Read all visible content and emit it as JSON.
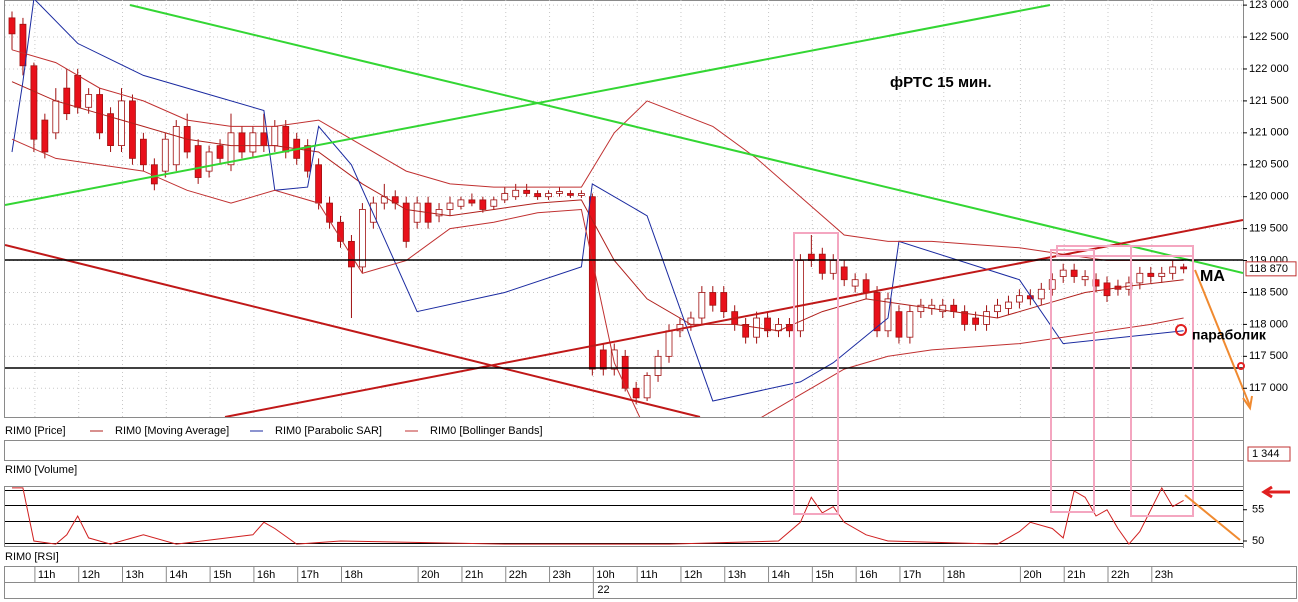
{
  "chart_data": {
    "type": "candlestick",
    "title": "фРТС   15 мин.",
    "annotations": [
      "MA",
      "параболик"
    ],
    "ylim": [
      116550,
      123080
    ],
    "yticks": [
      {
        "value": 117000,
        "label": "117 000"
      },
      {
        "value": 117500,
        "label": "117 500"
      },
      {
        "value": 118000,
        "label": "118 000"
      },
      {
        "value": 118500,
        "label": "118 500"
      },
      {
        "value": 119000,
        "label": "119 000"
      },
      {
        "value": 119500,
        "label": "119 500"
      },
      {
        "value": 120000,
        "label": "120 000"
      },
      {
        "value": 120500,
        "label": "120 500"
      },
      {
        "value": 121000,
        "label": "121 000"
      },
      {
        "value": 121500,
        "label": "121 500"
      },
      {
        "value": 122000,
        "label": "122 000"
      },
      {
        "value": 122500,
        "label": "122 500"
      },
      {
        "value": 123000,
        "label": "123 000"
      }
    ],
    "grid": true,
    "last_price": {
      "value": 118870,
      "label": "118 870"
    },
    "xticks": [
      {
        "value": 2,
        "label": "11h"
      },
      {
        "value": 6,
        "label": "12h"
      },
      {
        "value": 10,
        "label": "13h"
      },
      {
        "value": 14,
        "label": "14h"
      },
      {
        "value": 18,
        "label": "15h"
      },
      {
        "value": 22,
        "label": "16h"
      },
      {
        "value": 26,
        "label": "17h"
      },
      {
        "value": 30,
        "label": "18h"
      },
      {
        "value": 37,
        "label": "20h"
      },
      {
        "value": 41,
        "label": "21h"
      },
      {
        "value": 45,
        "label": "22h"
      },
      {
        "value": 49,
        "label": "23h"
      },
      {
        "value": 53,
        "label": "10h"
      },
      {
        "value": 57,
        "label": "11h"
      },
      {
        "value": 61,
        "label": "12h"
      },
      {
        "value": 65,
        "label": "13h"
      },
      {
        "value": 69,
        "label": "14h"
      },
      {
        "value": 73,
        "label": "15h"
      },
      {
        "value": 77,
        "label": "16h"
      },
      {
        "value": 81,
        "label": "17h"
      },
      {
        "value": 85,
        "label": "18h"
      },
      {
        "value": 92,
        "label": "20h"
      },
      {
        "value": 96,
        "label": "21h"
      },
      {
        "value": 100,
        "label": "22h"
      },
      {
        "value": 104,
        "label": "23h"
      }
    ],
    "date_tick": {
      "value": 53,
      "label": "22"
    },
    "series": [
      {
        "name": "RIM0 [Price]",
        "color": "#e8101a",
        "ohlc": [
          [
            122800,
            122900,
            122300,
            122550
          ],
          [
            122700,
            122800,
            121900,
            122050
          ],
          [
            122050,
            122100,
            120700,
            120900
          ],
          [
            121200,
            121300,
            120600,
            120700
          ],
          [
            121000,
            121700,
            120900,
            121500
          ],
          [
            121700,
            122000,
            121200,
            121300
          ],
          [
            121900,
            122000,
            121300,
            121400
          ],
          [
            121400,
            121700,
            121300,
            121600
          ],
          [
            121600,
            121700,
            120900,
            121000
          ],
          [
            121300,
            121400,
            120700,
            120800
          ],
          [
            120800,
            121700,
            120700,
            121500
          ],
          [
            121500,
            121600,
            120500,
            120600
          ],
          [
            120900,
            121000,
            120400,
            120500
          ],
          [
            120500,
            120600,
            120100,
            120200
          ],
          [
            120400,
            121000,
            120300,
            120900
          ],
          [
            120500,
            121200,
            120400,
            121100
          ],
          [
            121100,
            121300,
            120600,
            120700
          ],
          [
            120800,
            120900,
            120200,
            120300
          ],
          [
            120400,
            120800,
            120300,
            120700
          ],
          [
            120800,
            120900,
            120500,
            120600
          ],
          [
            120500,
            121300,
            120400,
            121000
          ],
          [
            121000,
            121100,
            120600,
            120700
          ],
          [
            120700,
            121100,
            120600,
            121000
          ],
          [
            121000,
            121300,
            120700,
            120800
          ],
          [
            120800,
            121200,
            120700,
            121100
          ],
          [
            121100,
            121200,
            120600,
            120700
          ],
          [
            120900,
            121000,
            120500,
            120600
          ],
          [
            120800,
            120900,
            120300,
            120400
          ],
          [
            120500,
            120600,
            119800,
            119900
          ],
          [
            119900,
            120000,
            119500,
            119600
          ],
          [
            119600,
            119700,
            119200,
            119300
          ],
          [
            119300,
            119400,
            118100,
            118900
          ],
          [
            118900,
            119900,
            118800,
            119800
          ],
          [
            119600,
            120000,
            119500,
            119900
          ],
          [
            119900,
            120200,
            119800,
            120000
          ],
          [
            120000,
            120100,
            119800,
            119900
          ],
          [
            119900,
            120000,
            119200,
            119300
          ],
          [
            119600,
            120000,
            119500,
            119900
          ],
          [
            119900,
            120000,
            119500,
            119600
          ],
          [
            119700,
            119900,
            119600,
            119800
          ],
          [
            119800,
            120000,
            119700,
            119900
          ],
          [
            119850,
            120000,
            119800,
            119950
          ],
          [
            119950,
            120050,
            119850,
            119900
          ],
          [
            119950,
            120000,
            119750,
            119800
          ],
          [
            119850,
            120000,
            119800,
            119950
          ],
          [
            119950,
            120150,
            119900,
            120050
          ],
          [
            120000,
            120200,
            119950,
            120100
          ],
          [
            120100,
            120200,
            120000,
            120050
          ],
          [
            120050,
            120100,
            119950,
            120000
          ],
          [
            120000,
            120100,
            119950,
            120050
          ],
          [
            120050,
            120150,
            120000,
            120080
          ],
          [
            120050,
            120100,
            119980,
            120020
          ],
          [
            120020,
            120100,
            119980,
            120050
          ],
          [
            120000,
            120050,
            117200,
            117300
          ],
          [
            117600,
            117700,
            117200,
            117300
          ],
          [
            117300,
            117700,
            117200,
            117600
          ],
          [
            117500,
            117600,
            116950,
            117000
          ],
          [
            117000,
            117100,
            116750,
            116850
          ],
          [
            116850,
            117250,
            116800,
            117200
          ],
          [
            117200,
            117600,
            117100,
            117500
          ],
          [
            117500,
            118000,
            117400,
            117900
          ],
          [
            117900,
            118100,
            117800,
            118000
          ],
          [
            118000,
            118200,
            117900,
            118100
          ],
          [
            118100,
            118600,
            118000,
            118500
          ],
          [
            118500,
            118600,
            118200,
            118300
          ],
          [
            118500,
            118600,
            118100,
            118200
          ],
          [
            118200,
            118300,
            117900,
            118000
          ],
          [
            118000,
            118100,
            117700,
            117800
          ],
          [
            117800,
            118200,
            117700,
            118100
          ],
          [
            118100,
            118200,
            117800,
            117900
          ],
          [
            117900,
            118100,
            117800,
            118000
          ],
          [
            118000,
            118100,
            117800,
            117900
          ],
          [
            117900,
            119100,
            117800,
            119000
          ],
          [
            119100,
            119400,
            118900,
            119000
          ],
          [
            119100,
            119200,
            118700,
            118800
          ],
          [
            118800,
            119100,
            118700,
            119000
          ],
          [
            118900,
            119000,
            118600,
            118700
          ],
          [
            118600,
            118800,
            118500,
            118700
          ],
          [
            118700,
            118800,
            118400,
            118500
          ],
          [
            118500,
            118600,
            117800,
            117900
          ],
          [
            117900,
            118500,
            117800,
            118400
          ],
          [
            118200,
            118300,
            117700,
            117800
          ],
          [
            117800,
            118300,
            117700,
            118200
          ],
          [
            118200,
            118400,
            118100,
            118300
          ],
          [
            118250,
            118400,
            118150,
            118300
          ],
          [
            118200,
            118400,
            118100,
            118300
          ],
          [
            118300,
            118400,
            118100,
            118200
          ],
          [
            118200,
            118300,
            117900,
            118000
          ],
          [
            118100,
            118200,
            117900,
            118000
          ],
          [
            118000,
            118300,
            117900,
            118200
          ],
          [
            118200,
            118400,
            118100,
            118300
          ],
          [
            118250,
            118450,
            118150,
            118350
          ],
          [
            118350,
            118550,
            118250,
            118450
          ],
          [
            118450,
            118550,
            118300,
            118400
          ],
          [
            118400,
            118650,
            118300,
            118550
          ],
          [
            118550,
            118800,
            118450,
            118700
          ],
          [
            118750,
            118950,
            118650,
            118850
          ],
          [
            118850,
            118950,
            118650,
            118750
          ],
          [
            118700,
            118850,
            118600,
            118750
          ],
          [
            118700,
            118800,
            118500,
            118600
          ],
          [
            118650,
            118750,
            118350,
            118450
          ],
          [
            118600,
            118700,
            118450,
            118550
          ],
          [
            118550,
            118750,
            118450,
            118650
          ],
          [
            118650,
            118900,
            118550,
            118800
          ],
          [
            118800,
            118900,
            118650,
            118750
          ],
          [
            118750,
            118900,
            118650,
            118800
          ],
          [
            118800,
            119000,
            118700,
            118900
          ],
          [
            118900,
            118950,
            118800,
            118870
          ]
        ]
      },
      {
        "name": "RIM0 [Moving Average]",
        "color": "#b0201c",
        "x": [
          0,
          4,
          8,
          12,
          16,
          20,
          24,
          28,
          32,
          36,
          40,
          44,
          48,
          52,
          55,
          58,
          62,
          66,
          70,
          74,
          78,
          82,
          86,
          90,
          94,
          98,
          102,
          107
        ],
        "values": [
          121800,
          121500,
          121300,
          121100,
          120900,
          120800,
          120800,
          120700,
          120200,
          119800,
          119700,
          119800,
          119900,
          119950,
          119000,
          118400,
          118000,
          118000,
          117900,
          118200,
          118400,
          118300,
          118200,
          118100,
          118300,
          118500,
          118600,
          118700
        ]
      },
      {
        "name": "RIM0 [Parabolic SAR]",
        "color": "#1a2aa0",
        "x": [
          0,
          1,
          2,
          6,
          12,
          18,
          23,
          24,
          27,
          28,
          31,
          37,
          45,
          52,
          53,
          58,
          64,
          72,
          75,
          80,
          81,
          92,
          96,
          107
        ],
        "values": [
          120700,
          121800,
          123100,
          122400,
          121900,
          121600,
          121350,
          120100,
          120150,
          121100,
          120500,
          118200,
          118500,
          118900,
          120200,
          119700,
          116800,
          117100,
          117400,
          118100,
          119300,
          118700,
          117700,
          117900
        ]
      },
      {
        "name": "RIM0 [Bollinger Bands]",
        "color": "#c03030",
        "x": [
          0,
          4,
          8,
          12,
          16,
          20,
          24,
          28,
          32,
          36,
          40,
          44,
          48,
          52,
          55,
          58,
          64,
          68,
          72,
          76,
          80,
          84,
          88,
          92,
          96,
          100,
          104,
          107
        ],
        "upper": [
          122300,
          122100,
          121700,
          121500,
          121200,
          121100,
          121100,
          121200,
          120800,
          120400,
          120200,
          120150,
          120150,
          120150,
          121000,
          121500,
          121100,
          120600,
          120000,
          119400,
          119300,
          119300,
          119250,
          119200,
          119100,
          119000,
          119000,
          119000
        ],
        "lower": [
          120900,
          120600,
          120500,
          120400,
          120100,
          119900,
          120100,
          119900,
          118800,
          119000,
          119500,
          119600,
          119750,
          119800,
          117400,
          116300,
          116400,
          116500,
          116900,
          117300,
          117500,
          117600,
          117650,
          117700,
          117800,
          117900,
          118000,
          118100
        ]
      }
    ],
    "volume": {
      "title": "RIM0 [Volume]",
      "last_label": "1 344"
    },
    "rsi": {
      "title": "RIM0 [RSI]",
      "color": "#d02020",
      "ylim": [
        49.2,
        58.8
      ],
      "yticks": [
        50,
        55
      ],
      "x": [
        0,
        1,
        2,
        4,
        5,
        6,
        7,
        9,
        12,
        15,
        22,
        23,
        24,
        26,
        30,
        45,
        60,
        70,
        72,
        73,
        74,
        75,
        76,
        78,
        80,
        90,
        92,
        93,
        95,
        96,
        97,
        98,
        99,
        100,
        101,
        102,
        103,
        104,
        105,
        106,
        107
      ],
      "values": [
        58.5,
        58.5,
        50,
        49.5,
        51,
        54,
        50.5,
        49.5,
        51,
        49.5,
        51,
        53,
        52,
        49.5,
        50,
        49.5,
        49.5,
        50,
        53,
        57,
        54.5,
        55.5,
        53,
        51,
        50,
        49.5,
        51.5,
        53,
        52,
        50.5,
        58,
        57,
        54,
        55,
        52,
        49.5,
        51.5,
        55,
        58.5,
        55.5,
        56.5
      ]
    }
  }
}
